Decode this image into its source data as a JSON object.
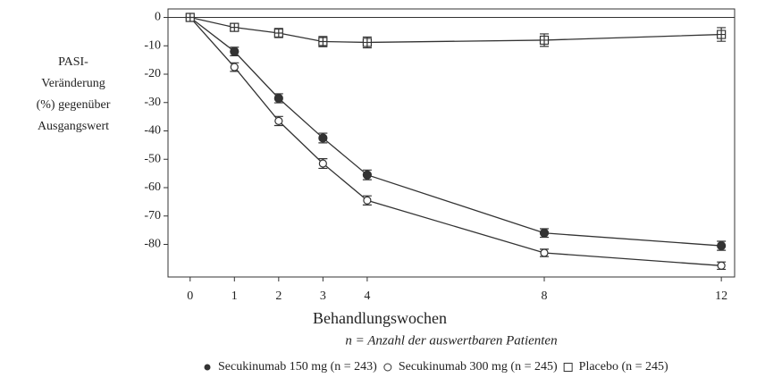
{
  "chart_data": {
    "type": "line",
    "y_label": [
      "PASI-",
      "Veränderung",
      "(%) gegenüber",
      "Ausgangswert"
    ],
    "x_label": "Behandlungswochen",
    "note": "n = Anzahl der auswertbaren Patienten",
    "x": [
      0,
      1,
      2,
      3,
      4,
      8,
      12
    ],
    "xlim": [
      -0.5,
      12.3
    ],
    "xticks": [
      0,
      1,
      2,
      3,
      4,
      8,
      12
    ],
    "ylim": [
      -91.5,
      3
    ],
    "yticks": [
      0,
      -10,
      -20,
      -30,
      -40,
      -50,
      -60,
      -70,
      -80
    ],
    "reference_line": 0,
    "series": [
      {
        "name": "Secukinumab 150 mg (n = 243)",
        "color": "#333333",
        "marker": "filled-circle",
        "values": [
          0,
          -12,
          -28.5,
          -42.5,
          -55.5,
          -76,
          -80.5
        ],
        "errors": [
          0,
          1.5,
          1.6,
          1.7,
          1.7,
          1.5,
          1.6
        ]
      },
      {
        "name": "Secukinumab 300 mg (n = 245)",
        "color": "#333333",
        "marker": "open-circle",
        "values": [
          0,
          -17.5,
          -36.5,
          -51.5,
          -64.5,
          -83,
          -87.5
        ],
        "errors": [
          0,
          1.5,
          1.6,
          1.7,
          1.6,
          1.3,
          1.3
        ]
      },
      {
        "name": "Placebo (n = 245)",
        "color": "#333333",
        "marker": "square-plus",
        "values": [
          0,
          -3.5,
          -5.5,
          -8.5,
          -8.8,
          -8,
          -6
        ],
        "errors": [
          0,
          1.3,
          1.6,
          1.8,
          1.9,
          2.2,
          2.4
        ]
      }
    ]
  }
}
